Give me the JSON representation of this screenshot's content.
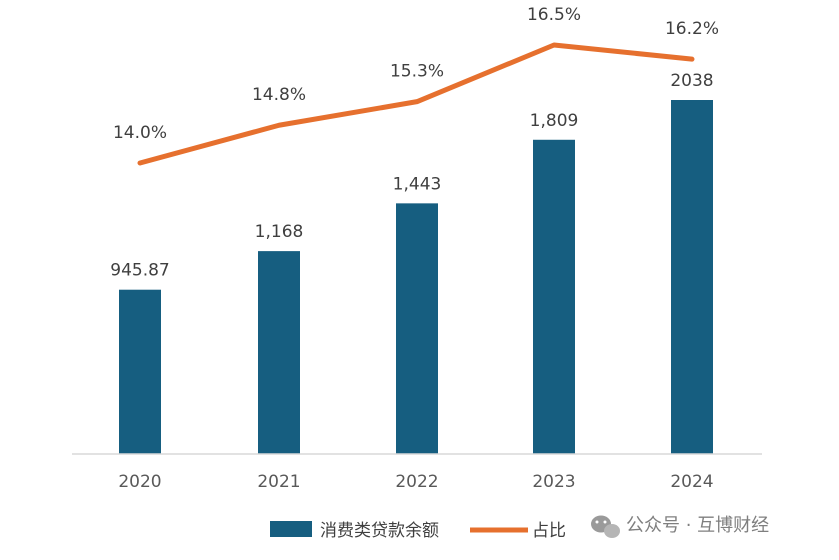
{
  "chart_data": {
    "type": "bar",
    "categories": [
      "2020",
      "2021",
      "2022",
      "2023",
      "2024"
    ],
    "series": [
      {
        "name": "消费类贷款余额",
        "kind": "bar",
        "values": [
          945.87,
          1168,
          1443,
          1809,
          2038
        ],
        "labels": [
          "945.87",
          "1,168",
          "1,443",
          "1,809",
          "2038"
        ],
        "color": "#165e80"
      },
      {
        "name": "占比",
        "kind": "line",
        "values": [
          14.0,
          14.8,
          15.3,
          16.5,
          16.2
        ],
        "labels": [
          "14.0%",
          "14.8%",
          "15.3%",
          "16.5%",
          "16.2%"
        ],
        "color": "#e6702e"
      }
    ],
    "legend_position": "bottom",
    "grid": false
  },
  "watermark": {
    "text": "公众号 · 互博财经",
    "icon": "wechat-icon"
  }
}
